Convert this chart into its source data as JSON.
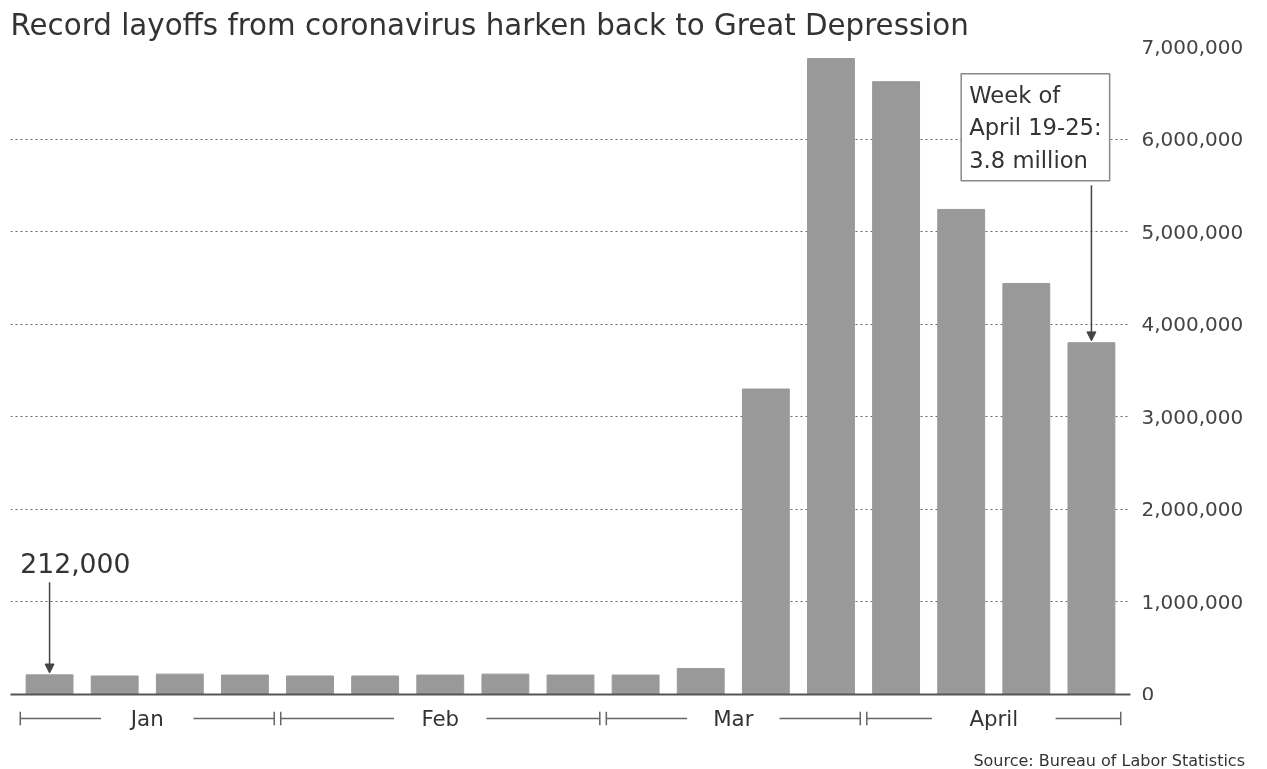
{
  "chart_data": {
    "type": "bar",
    "title": "Record layoffs from coronavirus harken back to Great Depression",
    "categories": [
      null,
      null,
      null,
      null,
      null,
      null,
      null,
      null,
      null,
      null,
      null,
      null,
      null,
      null,
      null,
      null,
      null
    ],
    "values": [
      212000,
      200000,
      220000,
      210000,
      200000,
      200000,
      210000,
      220000,
      210000,
      210000,
      280000,
      3300000,
      6870000,
      6620000,
      5240000,
      4440000,
      3800000
    ],
    "color": "#999999",
    "ylim": [
      0,
      7000000
    ],
    "yticks": [
      {
        "value": 0,
        "label": "0"
      },
      {
        "value": 1000000,
        "label": "1,000,000"
      },
      {
        "value": 2000000,
        "label": "2,000,000"
      },
      {
        "value": 3000000,
        "label": "3,000,000"
      },
      {
        "value": 4000000,
        "label": "4,000,000"
      },
      {
        "value": 5000000,
        "label": "5,000,000"
      },
      {
        "value": 6000000,
        "label": "6,000,000"
      },
      {
        "value": 7000000,
        "label": "7,000,000"
      }
    ],
    "grid": "y",
    "annotations": [
      "Jan",
      "Feb",
      "Mar",
      "April",
      "212,000",
      "Week of\nApril 19-25:\n3.8 million",
      "Source: Bureau of Labor Statistics"
    ]
  }
}
